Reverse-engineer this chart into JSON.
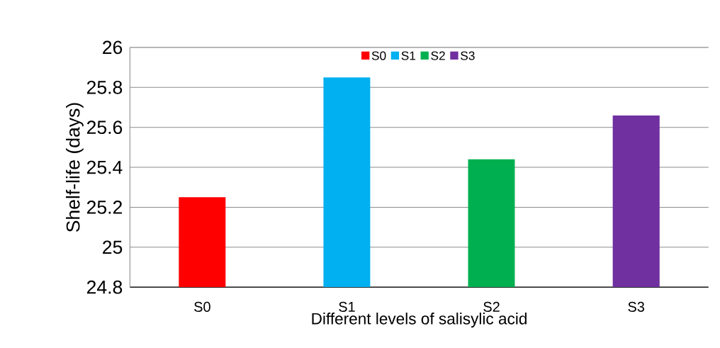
{
  "chart_data": {
    "type": "bar",
    "xlabel": "Different levels of salisylic acid",
    "ylabel": "Shelf-life (days)",
    "categories": [
      "S0",
      "S1",
      "S2",
      "S3"
    ],
    "series": [
      {
        "name": "S0",
        "color": "#ff0000",
        "values": [
          25.25,
          null,
          null,
          null
        ]
      },
      {
        "name": "S1",
        "color": "#00b0f0",
        "values": [
          null,
          25.85,
          null,
          null
        ]
      },
      {
        "name": "S2",
        "color": "#00b050",
        "values": [
          null,
          null,
          25.44,
          null
        ]
      },
      {
        "name": "S3",
        "color": "#7030a0",
        "values": [
          null,
          null,
          null,
          25.66
        ]
      }
    ],
    "ylim": [
      24.8,
      26
    ],
    "yticks": [
      24.8,
      25,
      25.2,
      25.4,
      25.6,
      25.8,
      26
    ],
    "grid": "y",
    "legend": "top"
  }
}
